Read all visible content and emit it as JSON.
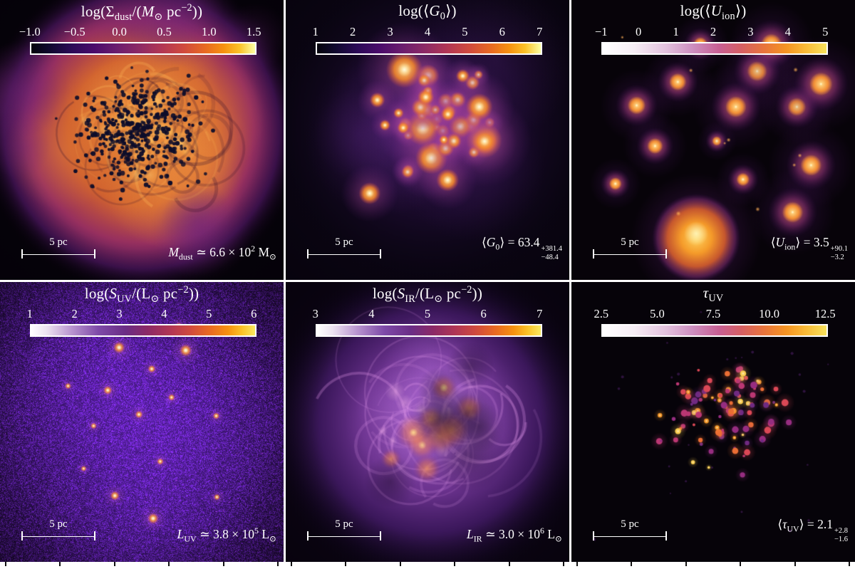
{
  "panels": [
    {
      "name": "dust-surface-density",
      "title_html": "log(Σ<sub>dust</sub>/(<i>M</i><sub>⊙</sub> pc<sup>−2</sup>))",
      "ticks": [
        "−1.0",
        "−0.5",
        "0.0",
        "0.5",
        "1.0",
        "1.5"
      ],
      "scalebar_label": "5 pc",
      "annotation_html": "<i>M</i><sub>dust</sub> ≃ 6.6 × 10<sup>2</sup> M<sub>⊙</sub>"
    },
    {
      "name": "g0-radiation-field",
      "title_html": "log(⟨<i>G</i><sub>0</sub>⟩)",
      "ticks": [
        "1",
        "2",
        "3",
        "4",
        "5",
        "6",
        "7"
      ],
      "scalebar_label": "5 pc",
      "annotation_html": "⟨<i>G</i><sub>0</sub>⟩ = 63.4<span class='ss'><span>+381.4</span><span>−48.4</span></span>"
    },
    {
      "name": "ionization-parameter",
      "title_html": "log(⟨<i>U</i><sub>ion</sub>⟩)",
      "ticks": [
        "−1",
        "0",
        "1",
        "2",
        "3",
        "4",
        "5"
      ],
      "scalebar_label": "5 pc",
      "annotation_html": "⟨<i>U</i><sub>ion</sub>⟩ = 3.5<span class='ss'><span>+90.1</span><span>−3.2</span></span>"
    },
    {
      "name": "uv-surface-brightness",
      "title_html": "log(<i>S</i><sub>UV</sub>/(L<sub>⊙</sub> pc<sup>−2</sup>))",
      "ticks": [
        "1",
        "2",
        "3",
        "4",
        "5",
        "6"
      ],
      "scalebar_label": "5 pc",
      "annotation_html": "<i>L</i><sub>UV</sub> ≃ 3.8 × 10<sup>5</sup> L<sub>⊙</sub>"
    },
    {
      "name": "ir-surface-brightness",
      "title_html": "log(<i>S</i><sub>IR</sub>/(L<sub>⊙</sub> pc<sup>−2</sup>))",
      "ticks": [
        "3",
        "4",
        "5",
        "6",
        "7"
      ],
      "scalebar_label": "5 pc",
      "annotation_html": "<i>L</i><sub>IR</sub> ≃ 3.0 × 10<sup>6</sup> L<sub>⊙</sub>"
    },
    {
      "name": "uv-optical-depth",
      "title_html": "<i>τ</i><sub>UV</sub>",
      "ticks": [
        "2.5",
        "5.0",
        "7.5",
        "10.0",
        "12.5"
      ],
      "scalebar_label": "5 pc",
      "annotation_html": "⟨<i>τ</i><sub>UV</sub>⟩ = 2.1<span class='ss'><span>+2.8</span><span>−1.6</span></span>"
    }
  ],
  "colors": {
    "text": "#ffffff",
    "background": "#ffffff",
    "map_dark": "#060309",
    "colormap_hot": [
      "#04030c",
      "#4a0c6b",
      "#8c2a66",
      "#d04a3e",
      "#f69210",
      "#fcffa4"
    ],
    "colormap_light": [
      "#ffffff",
      "#cd8fc0",
      "#d55f63",
      "#f59422",
      "#f7e25c"
    ]
  },
  "chart_data": [
    {
      "type": "heatmap",
      "title": "log(Σ_dust/(M_⊙ pc⁻²))",
      "colorbar_ticks": [
        -1.0,
        -0.5,
        0.0,
        0.5,
        1.0,
        1.5
      ],
      "colorbar_range": [
        -1.0,
        1.5
      ],
      "scalebar": "5 pc",
      "annotation": "M_dust ≃ 6.6 × 10^2 M_⊙",
      "value": {
        "name": "M_dust",
        "value": 660,
        "unit": "M_⊙"
      }
    },
    {
      "type": "heatmap",
      "title": "log(⟨G_0⟩)",
      "colorbar_ticks": [
        1,
        2,
        3,
        4,
        5,
        6,
        7
      ],
      "colorbar_range": [
        1,
        7
      ],
      "scalebar": "5 pc",
      "annotation": "⟨G_0⟩ = 63.4 +381.4/−48.4",
      "value": {
        "name": "⟨G_0⟩",
        "value": 63.4,
        "err_plus": 381.4,
        "err_minus": 48.4
      }
    },
    {
      "type": "heatmap",
      "title": "log(⟨U_ion⟩)",
      "colorbar_ticks": [
        -1,
        0,
        1,
        2,
        3,
        4,
        5
      ],
      "colorbar_range": [
        -1,
        5
      ],
      "scalebar": "5 pc",
      "annotation": "⟨U_ion⟩ = 3.5 +90.1/−3.2",
      "value": {
        "name": "⟨U_ion⟩",
        "value": 3.5,
        "err_plus": 90.1,
        "err_minus": 3.2
      }
    },
    {
      "type": "heatmap",
      "title": "log(S_UV/(L_⊙ pc⁻²))",
      "colorbar_ticks": [
        1,
        2,
        3,
        4,
        5,
        6
      ],
      "colorbar_range": [
        1,
        6
      ],
      "scalebar": "5 pc",
      "annotation": "L_UV ≃ 3.8 × 10^5 L_⊙",
      "value": {
        "name": "L_UV",
        "value": 380000,
        "unit": "L_⊙"
      }
    },
    {
      "type": "heatmap",
      "title": "log(S_IR/(L_⊙ pc⁻²))",
      "colorbar_ticks": [
        3,
        4,
        5,
        6,
        7
      ],
      "colorbar_range": [
        3,
        7
      ],
      "scalebar": "5 pc",
      "annotation": "L_IR ≃ 3.0 × 10^6 L_⊙",
      "value": {
        "name": "L_IR",
        "value": 3000000,
        "unit": "L_⊙"
      }
    },
    {
      "type": "heatmap",
      "title": "τ_UV",
      "colorbar_ticks": [
        2.5,
        5.0,
        7.5,
        10.0,
        12.5
      ],
      "colorbar_range": [
        2.5,
        12.5
      ],
      "scalebar": "5 pc",
      "annotation": "⟨τ_UV⟩ = 2.1 +2.8/−1.6",
      "value": {
        "name": "⟨τ_UV⟩",
        "value": 2.1,
        "err_plus": 2.8,
        "err_minus": 1.6
      }
    }
  ]
}
